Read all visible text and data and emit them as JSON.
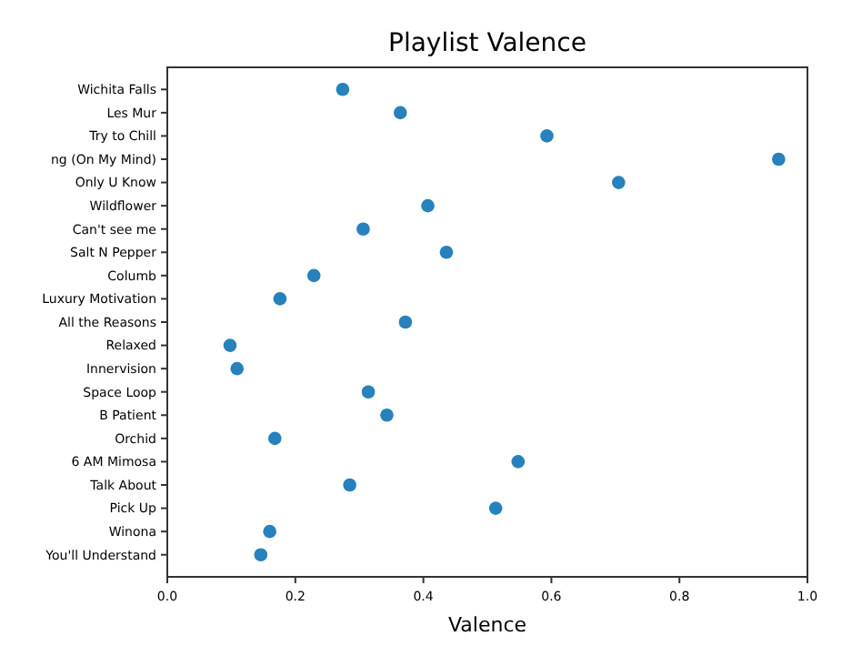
{
  "chart_data": {
    "type": "scatter",
    "orientation": "horizontal",
    "title": "Playlist Valence",
    "xlabel": "Valence",
    "categories": [
      "Wichita Falls",
      "Les Mur",
      "Try to Chill",
      "ng (On My Mind)",
      "Only U Know",
      "Wildflower",
      "Can't see me",
      "Salt N Pepper",
      "Columb",
      "Luxury Motivation",
      "All the Reasons",
      "Relaxed",
      "Innervision",
      "Space Loop",
      "B Patient",
      "Orchid",
      "6 AM Mimosa",
      "Talk About",
      "Pick Up",
      "Winona",
      "You'll Understand"
    ],
    "values": [
      0.274,
      0.364,
      0.593,
      0.955,
      0.705,
      0.407,
      0.306,
      0.436,
      0.229,
      0.176,
      0.372,
      0.098,
      0.109,
      0.314,
      0.343,
      0.168,
      0.548,
      0.285,
      0.513,
      0.16,
      0.146
    ],
    "color": "#2681bd",
    "marker": "circle",
    "xlim": [
      0,
      1
    ],
    "xticks": [
      {
        "value": 0,
        "label": "0.0"
      },
      {
        "value": 0.2,
        "label": "0.2"
      },
      {
        "value": 0.4,
        "label": "0.4"
      },
      {
        "value": 0.6,
        "label": "0.6"
      },
      {
        "value": 0.8,
        "label": "0.8"
      },
      {
        "value": 1,
        "label": "1.0"
      }
    ],
    "grid": false
  }
}
